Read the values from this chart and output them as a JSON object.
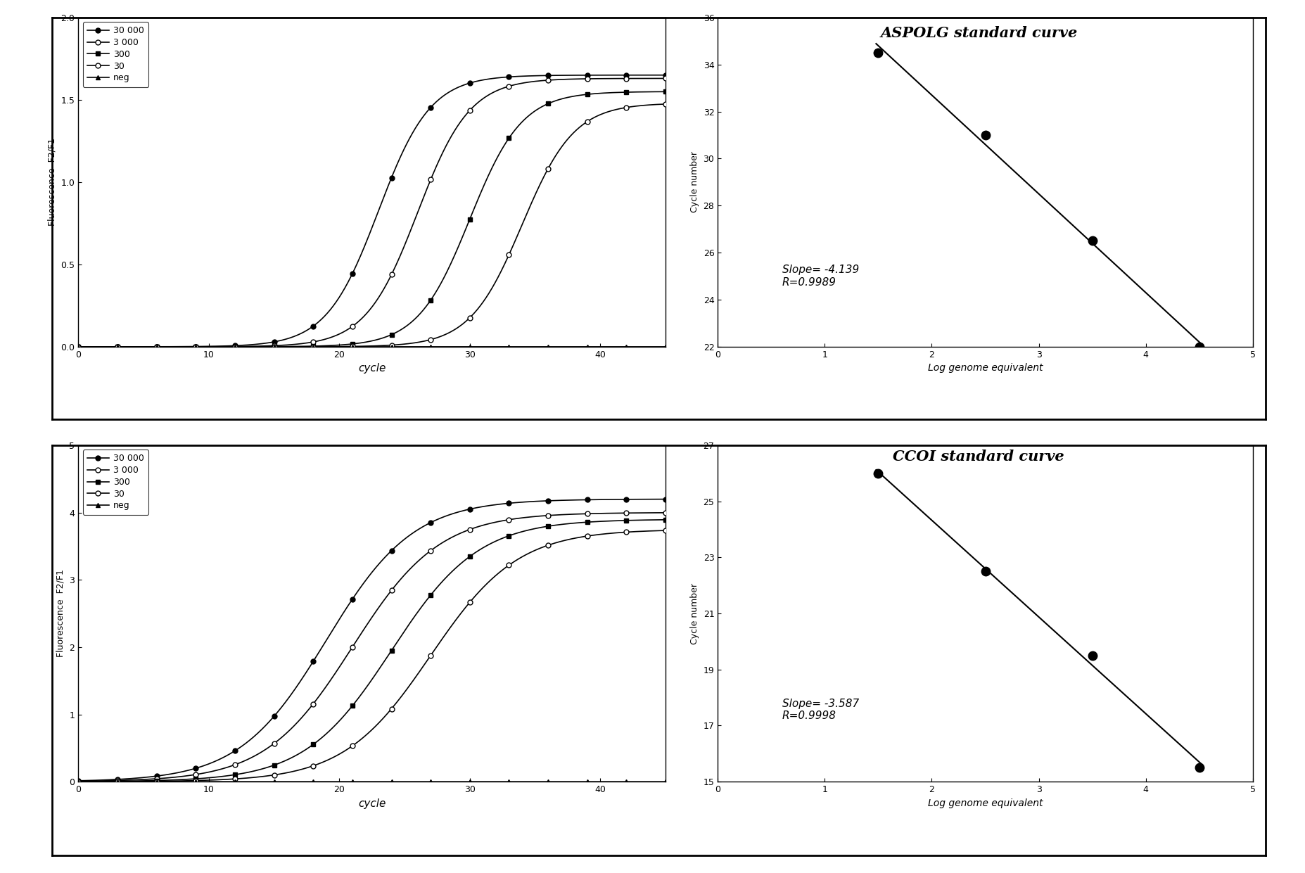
{
  "top_title": "ASPOLG standard curve",
  "bottom_title": "CCOI standard curve",
  "aspolg_fluor": {
    "xlim": [
      0,
      45
    ],
    "ylim": [
      0.0,
      2.0
    ],
    "yticks": [
      0.0,
      0.5,
      1.0,
      1.5,
      2.0
    ],
    "xticks": [
      0,
      10,
      20,
      30,
      40
    ],
    "xlabel": "cycle",
    "ylabel": "Fluorescence  F2/F1",
    "series_midpoints": [
      23,
      26,
      30,
      34,
      60
    ],
    "series_slopes": [
      0.5,
      0.5,
      0.5,
      0.5,
      0.5
    ],
    "series_plateaus": [
      1.65,
      1.63,
      1.55,
      1.48,
      0.13
    ]
  },
  "aspolg_std": {
    "xlim": [
      0,
      5
    ],
    "ylim": [
      22,
      36
    ],
    "yticks": [
      22,
      24,
      26,
      28,
      30,
      32,
      34,
      36
    ],
    "xticks": [
      0,
      1,
      2,
      3,
      4,
      5
    ],
    "xlabel": "Log genome equivalent",
    "ylabel": "Cycle number",
    "points_x": [
      1.5,
      2.5,
      3.5,
      4.5
    ],
    "points_y": [
      34.5,
      31.0,
      26.5,
      22.0
    ],
    "slope_text": "Slope= -4.139",
    "r_text": "R=0.9989"
  },
  "ccoi_fluor": {
    "xlim": [
      0,
      45
    ],
    "ylim": [
      0.0,
      5.0
    ],
    "yticks": [
      0.0,
      1.0,
      2.0,
      3.0,
      4.0,
      5.0
    ],
    "xticks": [
      0,
      10,
      20,
      30,
      40
    ],
    "xlabel": "cycle",
    "ylabel": "Fluorescence  F2/F1",
    "series_midpoints": [
      19,
      21,
      24,
      27,
      65
    ],
    "series_slopes": [
      0.3,
      0.3,
      0.3,
      0.3,
      0.3
    ],
    "series_plateaus": [
      4.2,
      4.0,
      3.9,
      3.75,
      0.05
    ]
  },
  "ccoi_std": {
    "xlim": [
      0,
      5
    ],
    "ylim": [
      15,
      27
    ],
    "yticks": [
      15,
      17,
      19,
      21,
      23,
      25,
      27
    ],
    "xticks": [
      0,
      1,
      2,
      3,
      4,
      5
    ],
    "xlabel": "Log genome equivalent",
    "ylabel": "Cycle number",
    "points_x": [
      1.5,
      2.5,
      3.5,
      4.5
    ],
    "points_y": [
      26.0,
      22.5,
      19.5,
      15.5
    ],
    "slope_text": "Slope= -3.587",
    "r_text": "R=0.9998"
  },
  "legend_labels": [
    "30 000",
    "3 000",
    "300",
    "30",
    "neg"
  ],
  "markers": [
    "o",
    "o",
    "s",
    "o",
    "^"
  ],
  "fills": [
    true,
    false,
    true,
    false,
    true
  ],
  "marker_size": 5,
  "line_width": 1.2,
  "marker_interval": 3
}
